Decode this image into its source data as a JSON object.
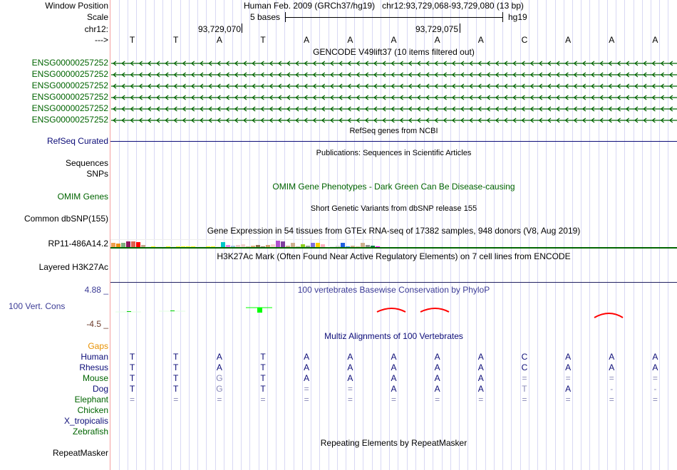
{
  "header": {
    "window_position_label": "Window Position",
    "window_position": "Human Feb. 2009 (GRCh37/hg19)   chr12:93,729,068-93,729,080 (13 bp)",
    "scale_label": "Scale",
    "scale_text": "5 bases",
    "scale_assembly": "hg19",
    "chr_label": "chr12:",
    "coord1": "93,729,070",
    "coord2": "93,729,075",
    "strand_label": "--->"
  },
  "sequence": [
    "T",
    "T",
    "A",
    "T",
    "A",
    "A",
    "A",
    "A",
    "A",
    "C",
    "A",
    "A",
    "A"
  ],
  "tracks": {
    "gencode": {
      "title": "GENCODE V49lift37 (10 items filtered out)",
      "items": [
        "ENSG00000257252",
        "ENSG00000257252",
        "ENSG00000257252",
        "ENSG00000257252",
        "ENSG00000257252",
        "ENSG00000257252"
      ]
    },
    "refseq": {
      "title": "RefSeq genes from NCBI",
      "label": "RefSeq Curated"
    },
    "publications": {
      "title": "Publications: Sequences in Scientific Articles",
      "label1": "Sequences",
      "label2": "SNPs"
    },
    "omim": {
      "title": "OMIM Gene Phenotypes - Dark Green Can Be Disease-causing",
      "label": "OMIM Genes"
    },
    "dbsnp": {
      "title": "Short Genetic Variants from dbSNP release 155",
      "label": "Common dbSNP(155)"
    },
    "gtex": {
      "title": "Gene Expression in 54 tissues from GTEx RNA-seq of 17382 samples, 948 donors (V8, Aug 2019)",
      "label": "RP11-486A14.2",
      "values": [
        6,
        5,
        6,
        8,
        8,
        7,
        3,
        0,
        1,
        0,
        0,
        1,
        0,
        1,
        1,
        1,
        1,
        0,
        0,
        1,
        1,
        0,
        7,
        3,
        2,
        3,
        4,
        1,
        2,
        3,
        1,
        3,
        4,
        9,
        8,
        2,
        6,
        1,
        4,
        2,
        6,
        6,
        4,
        1,
        0,
        2,
        6,
        1,
        2,
        1,
        6,
        3,
        2,
        1
      ],
      "colors": [
        "#f0a050",
        "#f09010",
        "#80b080",
        "#901860",
        "#e06050",
        "#ff0000",
        "#c8a890",
        "#ffffff",
        "#ffff00",
        "#ffffff",
        "#ffffff",
        "#ffff00",
        "#ffffff",
        "#ffff00",
        "#ffff00",
        "#ffff00",
        "#ffff00",
        "#ffffff",
        "#ffffff",
        "#ffff00",
        "#ffff00",
        "#ffffff",
        "#00c8c8",
        "#ee82ee",
        "#a0c8dc",
        "#f0c8c8",
        "#f0d0d0",
        "#d0b090",
        "#e0b080",
        "#907050",
        "#a08060",
        "#d0a070",
        "#f8d0d0",
        "#b050d0",
        "#8040a0",
        "#d0b090",
        "#d0b090",
        "#c8b8a0",
        "#90d020",
        "#a0a0a0",
        "#8070e0",
        "#ffd000",
        "#ffb0c0",
        "#ffffff",
        "#b0e0b0",
        "#d8d8d8",
        "#2060e0",
        "#3090ff",
        "#d0b090",
        "#d8c0a0",
        "#d0b090",
        "#909090",
        "#008040",
        "#ff00ff"
      ]
    },
    "h3k27ac": {
      "title": "H3K27Ac Mark (Often Found Near Active Regulatory Elements) on 7 cell lines from ENCODE",
      "label": "Layered H3K27Ac"
    },
    "phylop": {
      "title": "100 vertebrates Basewise Conservation by PhyloP",
      "label": "100 Vert. Cons",
      "max": "4.88 _",
      "min": "-4.5 _"
    },
    "multiz": {
      "title": "Multiz Alignments of 100 Vertebrates",
      "gaps_label": "Gaps",
      "species": [
        {
          "name": "Human",
          "seq": [
            "T",
            "T",
            "A",
            "T",
            "A",
            "A",
            "A",
            "A",
            "A",
            "C",
            "A",
            "A",
            "A"
          ],
          "color": "#0c0c78"
        },
        {
          "name": "Rhesus",
          "seq": [
            "T",
            "T",
            "A",
            "T",
            "A",
            "A",
            "A",
            "A",
            "A",
            "C",
            "A",
            "A",
            "A"
          ],
          "color": "#0c0c78"
        },
        {
          "name": "Mouse",
          "seq": [
            "T",
            "T",
            "G",
            "T",
            "A",
            "A",
            "A",
            "A",
            "A",
            "=",
            "=",
            "=",
            "="
          ],
          "color": "#006400"
        },
        {
          "name": "Dog",
          "seq": [
            "T",
            "T",
            "G",
            "T",
            "=",
            "=",
            "A",
            "A",
            "A",
            "T",
            "A",
            "-",
            "-"
          ],
          "color": "#0c0c78"
        },
        {
          "name": "Elephant",
          "seq": [
            "=",
            "=",
            "=",
            "=",
            "=",
            "=",
            "=",
            "=",
            "=",
            "=",
            "=",
            "=",
            "="
          ],
          "color": "#006400"
        },
        {
          "name": "Chicken",
          "seq": [],
          "color": "#006400"
        },
        {
          "name": "X_tropicalis",
          "seq": [],
          "color": "#0c0c78"
        },
        {
          "name": "Zebrafish",
          "seq": [],
          "color": "#006400"
        }
      ]
    },
    "repeatmasker": {
      "title": "Repeating Elements by RepeatMasker",
      "label": "RepeatMasker"
    }
  },
  "colors": {
    "gene_green": "#006400",
    "navy": "#0c0c78",
    "gaps_orange": "#e89000",
    "conservation_red": "#ff0000",
    "grid": "#d8d8f4"
  }
}
